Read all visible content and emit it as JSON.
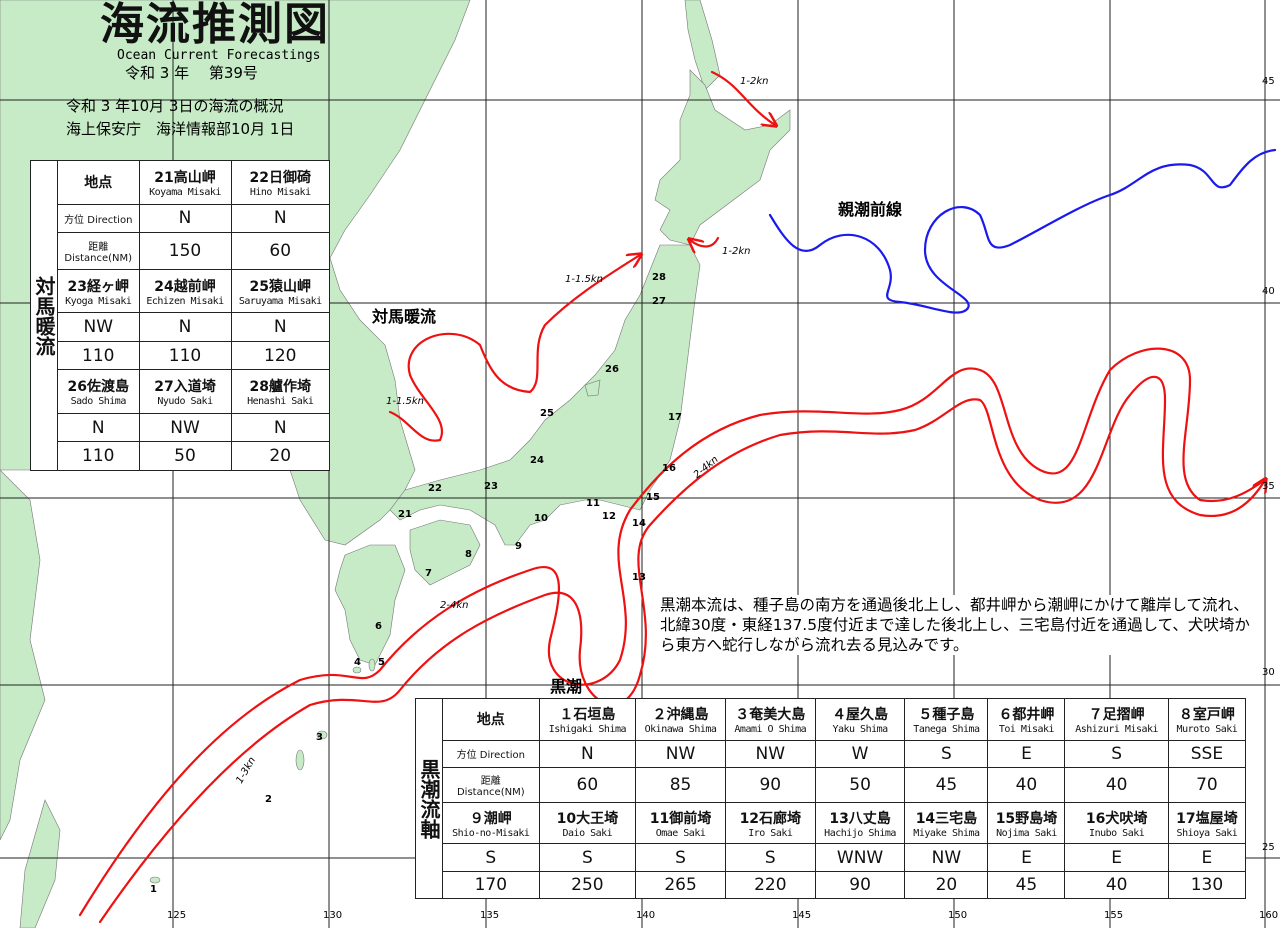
{
  "header": {
    "title": "海流推測図",
    "subtitle_en": "Ocean Current Forecastings",
    "issue": "令和 3 年　 第39号",
    "summary_line1": "令和 3 年10月 3日の海流の概況",
    "summary_line2": "海上保安庁　海洋情報部10月 1日"
  },
  "colors": {
    "land": "#c6ebc6",
    "kuroshio": "#ee1111",
    "oyashio_front": "#1a1aee",
    "grid": "#222222"
  },
  "map_labels": {
    "tsushima": "対馬暖流",
    "oyashio": "親潮前線",
    "kuroshio": "黒潮"
  },
  "speed_labels": [
    "1-2kn",
    "1-2kn",
    "1-1.5kn",
    "1-1.5kn",
    "2-4kn",
    "2-4kn",
    "1-3kn"
  ],
  "point_numbers": [
    "28",
    "27",
    "26",
    "25",
    "24",
    "23",
    "22",
    "21",
    "17",
    "16",
    "15",
    "14",
    "13",
    "12",
    "11",
    "10",
    "9",
    "8",
    "7",
    "6",
    "5",
    "4",
    "3",
    "2",
    "1"
  ],
  "longitude_ticks": [
    "125",
    "130",
    "135",
    "140",
    "145",
    "150",
    "155",
    "160"
  ],
  "latitude_ticks": [
    "45",
    "40",
    "35",
    "30",
    "25"
  ],
  "tsushima_table": {
    "side_label": "対馬暖流",
    "point_header": "地点",
    "direction_label": "方位 Direction",
    "distance_label_jp": "距離",
    "distance_label_en": "Distance(NM)",
    "groups": [
      {
        "points": [
          {
            "jp": "21高山岬",
            "en": "Koyama Misaki",
            "direction": "N",
            "distance": "150"
          },
          {
            "jp": "22日御碕",
            "en": "Hino Misaki",
            "direction": "N",
            "distance": "60"
          }
        ]
      },
      {
        "points": [
          {
            "jp": "23経ヶ岬",
            "en": "Kyoga Misaki",
            "direction": "NW",
            "distance": "110"
          },
          {
            "jp": "24越前岬",
            "en": "Echizen Misaki",
            "direction": "N",
            "distance": "110"
          },
          {
            "jp": "25猿山岬",
            "en": "Saruyama Misaki",
            "direction": "N",
            "distance": "120"
          }
        ]
      },
      {
        "points": [
          {
            "jp": "26佐渡島",
            "en": "Sado Shima",
            "direction": "N",
            "distance": "110"
          },
          {
            "jp": "27入道埼",
            "en": "Nyudo Saki",
            "direction": "NW",
            "distance": "50"
          },
          {
            "jp": "28艫作埼",
            "en": "Henashi Saki",
            "direction": "N",
            "distance": "20"
          }
        ]
      }
    ]
  },
  "kuroshio_table": {
    "side_label": "黒潮流軸",
    "point_header": "地点",
    "direction_label": "方位 Direction",
    "distance_label_jp": "距離",
    "distance_label_en": "Distance(NM)",
    "groups": [
      {
        "points": [
          {
            "jp": "１石垣島",
            "en": "Ishigaki Shima",
            "direction": "N",
            "distance": "60"
          },
          {
            "jp": "２沖縄島",
            "en": "Okinawa Shima",
            "direction": "NW",
            "distance": "85"
          },
          {
            "jp": "３奄美大島",
            "en": "Amami O Shima",
            "direction": "NW",
            "distance": "90"
          },
          {
            "jp": "４屋久島",
            "en": "Yaku Shima",
            "direction": "W",
            "distance": "50"
          },
          {
            "jp": "５種子島",
            "en": "Tanega Shima",
            "direction": "S",
            "distance": "45"
          },
          {
            "jp": "６都井岬",
            "en": "Toi Misaki",
            "direction": "E",
            "distance": "40"
          },
          {
            "jp": "７足摺岬",
            "en": "Ashizuri Misaki",
            "direction": "S",
            "distance": "40"
          },
          {
            "jp": "８室戸岬",
            "en": "Muroto Saki",
            "direction": "SSE",
            "distance": "70"
          }
        ]
      },
      {
        "points": [
          {
            "jp": "９潮岬",
            "en": "Shio-no-Misaki",
            "direction": "S",
            "distance": "170"
          },
          {
            "jp": "10大王埼",
            "en": "Daio Saki",
            "direction": "S",
            "distance": "250"
          },
          {
            "jp": "11御前埼",
            "en": "Omae Saki",
            "direction": "S",
            "distance": "265"
          },
          {
            "jp": "12石廊埼",
            "en": "Iro Saki",
            "direction": "S",
            "distance": "220"
          },
          {
            "jp": "13八丈島",
            "en": "Hachijo Shima",
            "direction": "WNW",
            "distance": "90"
          },
          {
            "jp": "14三宅島",
            "en": "Miyake Shima",
            "direction": "NW",
            "distance": "20"
          },
          {
            "jp": "15野島埼",
            "en": "Nojima Saki",
            "direction": "E",
            "distance": "45"
          },
          {
            "jp": "16犬吠埼",
            "en": "Inubo Saki",
            "direction": "E",
            "distance": "40"
          },
          {
            "jp": "17塩屋埼",
            "en": "Shioya Saki",
            "direction": "E",
            "distance": "130"
          }
        ]
      }
    ]
  },
  "description": "黒潮本流は、種子島の南方を通過後北上し、都井岬から潮岬にかけて離岸して流れ、北緯30度・東経137.5度付近まで達した後北上し、三宅島付近を通過して、犬吠埼から東方へ蛇行しながら流れ去る見込みです。"
}
